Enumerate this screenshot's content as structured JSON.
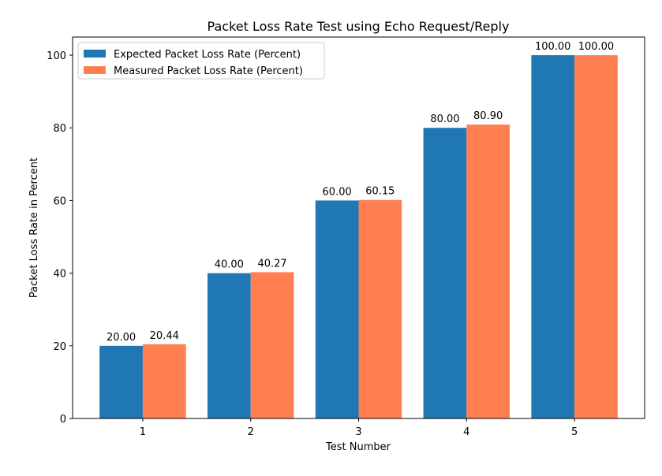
{
  "chart_data": {
    "type": "bar",
    "title": "Packet Loss Rate Test using Echo Request/Reply",
    "xlabel": "Test Number",
    "ylabel": "Packet Loss Rate in Percent",
    "categories": [
      "1",
      "2",
      "3",
      "4",
      "5"
    ],
    "series": [
      {
        "name": "Expected Packet Loss Rate (Percent)",
        "color": "#1f77b4",
        "values": [
          20.0,
          40.0,
          60.0,
          80.0,
          100.0
        ],
        "labels": [
          "20.00",
          "40.00",
          "60.00",
          "80.00",
          "100.00"
        ]
      },
      {
        "name": "Measured Packet Loss Rate (Percent)",
        "color": "#ff7f50",
        "values": [
          20.44,
          40.27,
          60.15,
          80.9,
          100.0
        ],
        "labels": [
          "20.44",
          "40.27",
          "60.15",
          "80.90",
          "100.00"
        ]
      }
    ],
    "ylim": [
      0,
      105
    ],
    "yticks": [
      0,
      20,
      40,
      60,
      80,
      100
    ],
    "grid": false,
    "legend_position": "upper-left"
  }
}
